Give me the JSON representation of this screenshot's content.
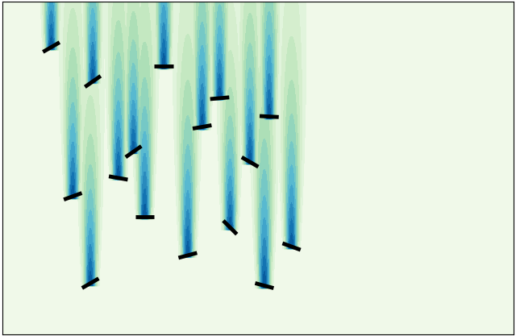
{
  "chart_data": {
    "type": "plates",
    "tick_labels": false,
    "xlim": [
      0,
      640
    ],
    "ylim": [
      417,
      0
    ],
    "x": [
      61,
      113,
      202,
      88,
      145,
      164,
      178,
      110,
      232,
      250,
      272,
      334,
      310,
      285,
      328,
      362
    ],
    "y": [
      57,
      100,
      81,
      244,
      221,
      188,
      270,
      353,
      318,
      157,
      121,
      144,
      201,
      283,
      356,
      307
    ],
    "angle": [
      30,
      35,
      0,
      20,
      -10,
      35,
      0,
      30,
      15,
      10,
      5,
      -3,
      -30,
      -45,
      -15,
      -20
    ],
    "wake": [
      160,
      170,
      190,
      170,
      180,
      160,
      200,
      170,
      200,
      190,
      170,
      190,
      170,
      160,
      210,
      190
    ]
  }
}
